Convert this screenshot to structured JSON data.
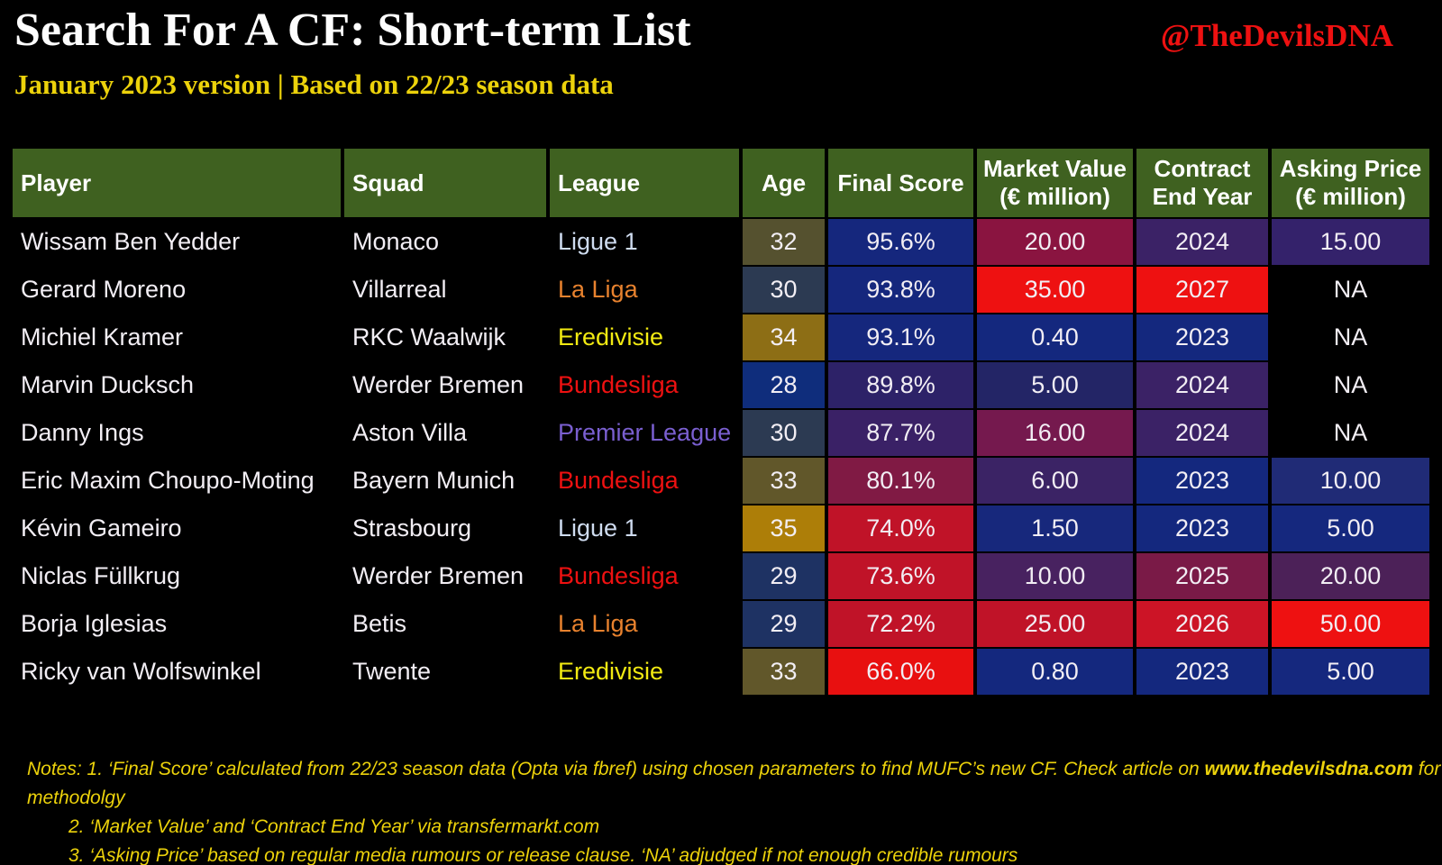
{
  "header": {
    "title": "Search For A CF: Short-term List",
    "subtitle": "January 2023 version | Based on 22/23 season data",
    "handle": "@TheDevilsDNA"
  },
  "colors": {
    "background": "#000000",
    "header_green": "#3f6120",
    "accent_red": "#ee1111",
    "accent_yellow": "#ecd20b",
    "text_white": "#f2eef4",
    "league_ligue1": "#cfdcf0",
    "league_laliga": "#e8822e",
    "league_eredivisie": "#f2ea12",
    "league_bundesliga": "#ee1111",
    "league_premier_league": "#7a5fd0"
  },
  "table": {
    "headers": [
      "Player",
      "Squad",
      "League",
      "Age",
      "Final Score",
      "Market Value\n(€ million)",
      "Contract\nEnd Year",
      "Asking Price\n(€ million)"
    ],
    "rows": [
      {
        "player": "Wissam Ben Yedder",
        "squad": "Monaco",
        "league": "Ligue 1",
        "league_color": "#cfdcf0",
        "age": "32",
        "age_bg": "#55512f",
        "final_score": "95.6%",
        "final_score_bg": "#15277d",
        "market_value": "20.00",
        "market_value_bg": "#8a1440",
        "contract_end_year": "2024",
        "contract_bg": "#3b2266",
        "asking_price": "15.00",
        "asking_bg": "#34226b"
      },
      {
        "player": "Gerard Moreno",
        "squad": "Villarreal",
        "league": "La Liga",
        "league_color": "#e8822e",
        "age": "30",
        "age_bg": "#2c3a52",
        "final_score": "93.8%",
        "final_score_bg": "#15277d",
        "market_value": "35.00",
        "market_value_bg": "#ee1111",
        "contract_end_year": "2027",
        "contract_bg": "#ee1111",
        "asking_price": "NA",
        "asking_bg": "#000000"
      },
      {
        "player": "Michiel Kramer",
        "squad": "RKC Waalwijk",
        "league": "Eredivisie",
        "league_color": "#f2ea12",
        "age": "34",
        "age_bg": "#8d6e15",
        "final_score": "93.1%",
        "final_score_bg": "#15277d",
        "market_value": "0.40",
        "market_value_bg": "#14287e",
        "contract_end_year": "2023",
        "contract_bg": "#14287e",
        "asking_price": "NA",
        "asking_bg": "#000000"
      },
      {
        "player": "Marvin Ducksch",
        "squad": "Werder Bremen",
        "league": "Bundesliga",
        "league_color": "#ee1111",
        "age": "28",
        "age_bg": "#0f2d7c",
        "final_score": "89.8%",
        "final_score_bg": "#2d2268",
        "market_value": "5.00",
        "market_value_bg": "#232566",
        "contract_end_year": "2024",
        "contract_bg": "#3b2266",
        "asking_price": "NA",
        "asking_bg": "#000000"
      },
      {
        "player": "Danny Ings",
        "squad": "Aston Villa",
        "league": "Premier League",
        "league_color": "#7a5fd0",
        "age": "30",
        "age_bg": "#2c3a52",
        "final_score": "87.7%",
        "final_score_bg": "#3a2166",
        "market_value": "16.00",
        "market_value_bg": "#75194e",
        "contract_end_year": "2024",
        "contract_bg": "#3b2266",
        "asking_price": "NA",
        "asking_bg": "#000000"
      },
      {
        "player": "Eric Maxim Choupo-Moting",
        "squad": "Bayern Munich",
        "league": "Bundesliga",
        "league_color": "#ee1111",
        "age": "33",
        "age_bg": "#61572a",
        "final_score": "80.1%",
        "final_score_bg": "#801a44",
        "market_value": "6.00",
        "market_value_bg": "#3b2365",
        "contract_end_year": "2023",
        "contract_bg": "#14287e",
        "asking_price": "10.00",
        "asking_bg": "#202b76"
      },
      {
        "player": "Kévin Gameiro",
        "squad": "Strasbourg",
        "league": "Ligue 1",
        "league_color": "#cfdcf0",
        "age": "35",
        "age_bg": "#ad7e08",
        "final_score": "74.0%",
        "final_score_bg": "#c01328",
        "market_value": "1.50",
        "market_value_bg": "#17287c",
        "contract_end_year": "2023",
        "contract_bg": "#14287e",
        "asking_price": "5.00",
        "asking_bg": "#15287e"
      },
      {
        "player": "Niclas Füllkrug",
        "squad": "Werder Bremen",
        "league": "Bundesliga",
        "league_color": "#ee1111",
        "age": "29",
        "age_bg": "#1e3263",
        "final_score": "73.6%",
        "final_score_bg": "#c01328",
        "market_value": "10.00",
        "market_value_bg": "#482260",
        "contract_end_year": "2025",
        "contract_bg": "#7a1a47",
        "asking_price": "20.00",
        "asking_bg": "#4c2158"
      },
      {
        "player": "Borja Iglesias",
        "squad": "Betis",
        "league": "La Liga",
        "league_color": "#e8822e",
        "age": "29",
        "age_bg": "#1e3263",
        "final_score": "72.2%",
        "final_score_bg": "#c01328",
        "market_value": "25.00",
        "market_value_bg": "#c01328",
        "contract_end_year": "2026",
        "contract_bg": "#cc1426",
        "asking_price": "50.00",
        "asking_bg": "#ee1111"
      },
      {
        "player": "Ricky van Wolfswinkel",
        "squad": "Twente",
        "league": "Eredivisie",
        "league_color": "#f2ea12",
        "age": "33",
        "age_bg": "#61572a",
        "final_score": "66.0%",
        "final_score_bg": "#e81010",
        "market_value": "0.80",
        "market_value_bg": "#14287e",
        "contract_end_year": "2023",
        "contract_bg": "#14287e",
        "asking_price": "5.00",
        "asking_bg": "#15287e"
      }
    ]
  },
  "notes": {
    "line1_pre": "Notes: 1. ‘Final Score’ calculated from 22/23 season data (Opta via fbref) using chosen parameters to find MUFC’s new CF. Check article on ",
    "line1_link": "www.thedevilsdna.com",
    "line1_post": " for methodolgy",
    "line2": "2. ‘Market Value’ and ‘Contract End Year’ via transfermarkt.com",
    "line3": "3. ‘Asking Price’ based on regular media rumours or release clause. ‘NA’ adjudged if not enough credible rumours"
  }
}
